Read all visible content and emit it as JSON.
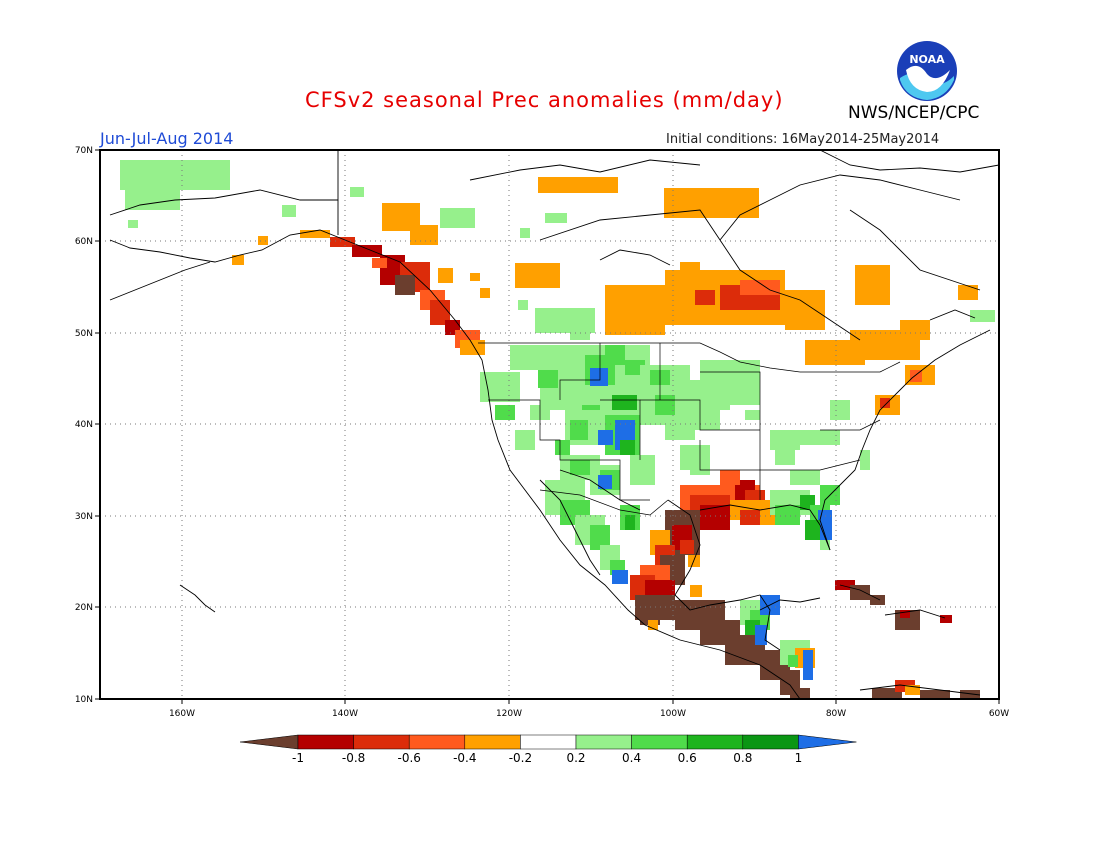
{
  "title": "CFSv2 seasonal Prec anomalies (mm/day)",
  "agency": "NWS/NCEP/CPC",
  "season": "Jun-Jul-Aug 2014",
  "initial_conditions": "Initial conditions: 16May2014-25May2014",
  "logo_text": "NOAA",
  "lon_ticks": [
    "160W",
    "140W",
    "120W",
    "100W",
    "80W",
    "60W"
  ],
  "lat_ticks": [
    "70N",
    "60N",
    "50N",
    "40N",
    "30N",
    "20N",
    "10N"
  ],
  "colorbar": {
    "labels": [
      "-1",
      "-0.8",
      "-0.6",
      "-0.4",
      "-0.2",
      "0.2",
      "0.4",
      "0.6",
      "0.8",
      "1"
    ],
    "colors": [
      "#6b3e2e",
      "#b40000",
      "#dc2c0a",
      "#ff5a1e",
      "#ffa000",
      "#ffffff",
      "#96f08c",
      "#50dc4b",
      "#1eb41e",
      "#0a9614",
      "#1e6ee6"
    ]
  },
  "colors": {
    "brown": "#6b3e2e",
    "dark_red": "#b40000",
    "red": "#dc2c0a",
    "orange_red": "#ff5a1e",
    "orange": "#ffa000",
    "light_green": "#96f08c",
    "green": "#50dc4b",
    "mid_green": "#1eb41e",
    "dark_green": "#0a9614",
    "blue": "#1e6ee6"
  }
}
